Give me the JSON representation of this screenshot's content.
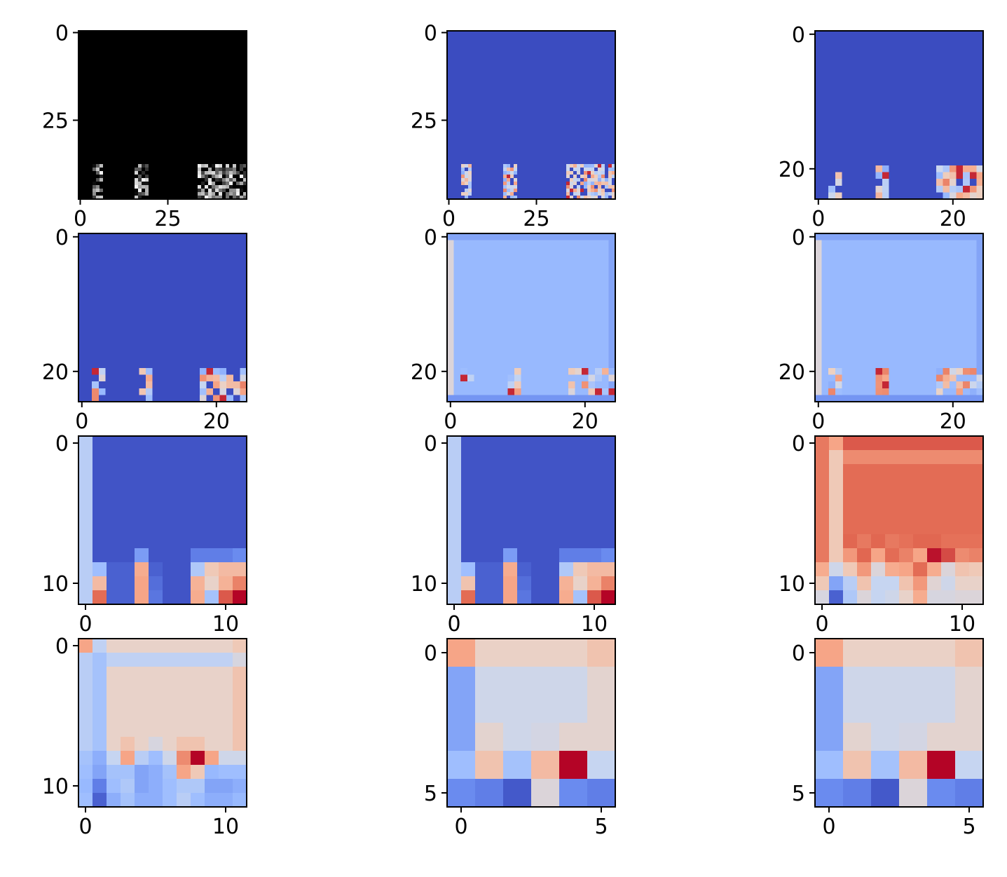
{
  "figure": {
    "description": "Grid of 12 heatmap panels (4 rows x 3 columns), each an imshow-style image with pixel-index axes",
    "colormaps": {
      "gray": [
        "#000000",
        "#ffffff"
      ],
      "coolwarm": [
        "#3b4cc0",
        "#6788ee",
        "#9abbff",
        "#c9d7f0",
        "#edd1c2",
        "#f7a889",
        "#e26952",
        "#b40426"
      ]
    }
  },
  "chart_data": [
    {
      "type": "heatmap",
      "panel": 1,
      "cmap": "gray",
      "matrix_size": [
        48,
        48
      ],
      "extent_x": [
        -0.5,
        47.5
      ],
      "extent_y": [
        -0.5,
        47.5
      ],
      "xticks": [
        0,
        25
      ],
      "xtick_labels": [
        "0",
        "25"
      ],
      "yticks": [
        0,
        25
      ],
      "ytick_labels": [
        "0",
        "25"
      ],
      "base_level": 0.0,
      "base_rows": 40,
      "pattern": "top 40 rows uniform black (zero); bottom rows show sparse bright column strokes (glyph-like)"
    },
    {
      "type": "heatmap",
      "panel": 2,
      "cmap": "coolwarm",
      "matrix_size": [
        48,
        48
      ],
      "extent_x": [
        -0.5,
        47.5
      ],
      "extent_y": [
        -0.5,
        47.5
      ],
      "xticks": [
        0,
        25
      ],
      "xtick_labels": [
        "0",
        "25"
      ],
      "yticks": [
        0,
        25
      ],
      "ytick_labels": [
        "0",
        "25"
      ],
      "base_level": 0.0,
      "base_rows": 35,
      "pattern": "uniform low (blue) background; glyph-like features in bottom rows with light blue / red pixels"
    },
    {
      "type": "heatmap",
      "panel": 3,
      "cmap": "coolwarm",
      "matrix_size": [
        25,
        25
      ],
      "extent_x": [
        -0.5,
        24.5
      ],
      "extent_y": [
        -0.5,
        24.5
      ],
      "xticks": [
        0,
        20
      ],
      "xtick_labels": [
        "0",
        "20"
      ],
      "yticks": [
        0,
        20
      ],
      "ytick_labels": [
        "0",
        "20"
      ],
      "base_level": 0.0,
      "base_rows": 18,
      "pattern": "uniform blue background; features in bottom rows"
    },
    {
      "type": "heatmap",
      "panel": 4,
      "cmap": "coolwarm",
      "matrix_size": [
        25,
        25
      ],
      "extent_x": [
        -0.5,
        24.5
      ],
      "extent_y": [
        -0.5,
        24.5
      ],
      "xticks": [
        0,
        20
      ],
      "xtick_labels": [
        "0",
        "20"
      ],
      "yticks": [
        0,
        20
      ],
      "ytick_labels": [
        "0",
        "20"
      ],
      "base_level": 0.0,
      "base_rows": 18,
      "pattern": "uniform blue background; features in bottom rows"
    },
    {
      "type": "heatmap",
      "panel": 5,
      "cmap": "coolwarm",
      "matrix_size": [
        25,
        25
      ],
      "extent_x": [
        -0.5,
        24.5
      ],
      "extent_y": [
        -0.5,
        24.5
      ],
      "xticks": [
        0,
        20
      ],
      "xtick_labels": [
        "0",
        "20"
      ],
      "yticks": [
        0,
        20
      ],
      "ytick_labels": [
        "0",
        "20"
      ],
      "base_level": 0.28,
      "base_rows": 18,
      "pattern": "uniform light-blue background with brighter left column; features in bottom rows"
    },
    {
      "type": "heatmap",
      "panel": 6,
      "cmap": "coolwarm",
      "matrix_size": [
        25,
        25
      ],
      "extent_x": [
        -0.5,
        24.5
      ],
      "extent_y": [
        -0.5,
        24.5
      ],
      "xticks": [
        0,
        20
      ],
      "xtick_labels": [
        "0",
        "20"
      ],
      "yticks": [
        0,
        20
      ],
      "ytick_labels": [
        "0",
        "20"
      ],
      "base_level": 0.28,
      "base_rows": 18,
      "pattern": "uniform light-blue background with brighter left column; features in bottom rows"
    },
    {
      "type": "heatmap",
      "panel": 7,
      "cmap": "coolwarm",
      "matrix_size": [
        12,
        12
      ],
      "extent_x": [
        -0.5,
        11.5
      ],
      "extent_y": [
        -0.5,
        11.5
      ],
      "xticks": [
        0,
        10
      ],
      "xtick_labels": [
        "0",
        "10"
      ],
      "yticks": [
        0,
        10
      ],
      "ytick_labels": [
        "0",
        "10"
      ],
      "matrix": [
        [
          0.38,
          0.02,
          0.02,
          0.02,
          0.02,
          0.02,
          0.02,
          0.02,
          0.02,
          0.02,
          0.02,
          0.02
        ],
        [
          0.38,
          0.02,
          0.02,
          0.02,
          0.02,
          0.02,
          0.02,
          0.02,
          0.02,
          0.02,
          0.02,
          0.02
        ],
        [
          0.38,
          0.02,
          0.02,
          0.02,
          0.02,
          0.02,
          0.02,
          0.02,
          0.02,
          0.02,
          0.02,
          0.02
        ],
        [
          0.38,
          0.02,
          0.02,
          0.02,
          0.02,
          0.02,
          0.02,
          0.02,
          0.02,
          0.02,
          0.02,
          0.02
        ],
        [
          0.38,
          0.02,
          0.02,
          0.02,
          0.02,
          0.02,
          0.02,
          0.02,
          0.02,
          0.02,
          0.02,
          0.02
        ],
        [
          0.38,
          0.02,
          0.02,
          0.02,
          0.02,
          0.02,
          0.02,
          0.02,
          0.02,
          0.02,
          0.02,
          0.02
        ],
        [
          0.38,
          0.02,
          0.02,
          0.02,
          0.02,
          0.02,
          0.02,
          0.02,
          0.02,
          0.02,
          0.02,
          0.02
        ],
        [
          0.38,
          0.02,
          0.02,
          0.02,
          0.02,
          0.02,
          0.02,
          0.02,
          0.02,
          0.02,
          0.02,
          0.02
        ],
        [
          0.38,
          0.02,
          0.02,
          0.02,
          0.2,
          0.02,
          0.02,
          0.02,
          0.12,
          0.12,
          0.12,
          0.15
        ],
        [
          0.38,
          0.3,
          0.05,
          0.05,
          0.7,
          0.05,
          0.02,
          0.02,
          0.35,
          0.6,
          0.65,
          0.65
        ],
        [
          0.38,
          0.65,
          0.05,
          0.05,
          0.72,
          0.08,
          0.02,
          0.02,
          0.68,
          0.55,
          0.68,
          0.8
        ],
        [
          0.38,
          0.85,
          0.05,
          0.05,
          0.72,
          0.1,
          0.02,
          0.02,
          0.7,
          0.32,
          0.88,
          1.0
        ]
      ]
    },
    {
      "type": "heatmap",
      "panel": 8,
      "cmap": "coolwarm",
      "matrix_size": [
        12,
        12
      ],
      "extent_x": [
        -0.5,
        11.5
      ],
      "extent_y": [
        -0.5,
        11.5
      ],
      "xticks": [
        0,
        10
      ],
      "xtick_labels": [
        "0",
        "10"
      ],
      "yticks": [
        0,
        10
      ],
      "ytick_labels": [
        "0",
        "10"
      ],
      "matrix": [
        [
          0.38,
          0.02,
          0.02,
          0.02,
          0.02,
          0.02,
          0.02,
          0.02,
          0.02,
          0.02,
          0.02,
          0.02
        ],
        [
          0.38,
          0.02,
          0.02,
          0.02,
          0.02,
          0.02,
          0.02,
          0.02,
          0.02,
          0.02,
          0.02,
          0.02
        ],
        [
          0.38,
          0.02,
          0.02,
          0.02,
          0.02,
          0.02,
          0.02,
          0.02,
          0.02,
          0.02,
          0.02,
          0.02
        ],
        [
          0.38,
          0.02,
          0.02,
          0.02,
          0.02,
          0.02,
          0.02,
          0.02,
          0.02,
          0.02,
          0.02,
          0.02
        ],
        [
          0.38,
          0.02,
          0.02,
          0.02,
          0.02,
          0.02,
          0.02,
          0.02,
          0.02,
          0.02,
          0.02,
          0.02
        ],
        [
          0.38,
          0.02,
          0.02,
          0.02,
          0.02,
          0.02,
          0.02,
          0.02,
          0.02,
          0.02,
          0.02,
          0.02
        ],
        [
          0.38,
          0.02,
          0.02,
          0.02,
          0.02,
          0.02,
          0.02,
          0.02,
          0.02,
          0.02,
          0.02,
          0.02
        ],
        [
          0.38,
          0.02,
          0.02,
          0.02,
          0.02,
          0.02,
          0.02,
          0.02,
          0.02,
          0.02,
          0.02,
          0.02
        ],
        [
          0.38,
          0.02,
          0.02,
          0.02,
          0.2,
          0.02,
          0.02,
          0.02,
          0.12,
          0.12,
          0.12,
          0.15
        ],
        [
          0.38,
          0.3,
          0.05,
          0.05,
          0.7,
          0.05,
          0.02,
          0.02,
          0.35,
          0.6,
          0.65,
          0.65
        ],
        [
          0.38,
          0.62,
          0.05,
          0.05,
          0.72,
          0.08,
          0.02,
          0.02,
          0.68,
          0.55,
          0.68,
          0.8
        ],
        [
          0.38,
          0.85,
          0.05,
          0.05,
          0.72,
          0.1,
          0.02,
          0.02,
          0.7,
          0.32,
          0.88,
          1.0
        ]
      ]
    },
    {
      "type": "heatmap",
      "panel": 9,
      "cmap": "coolwarm",
      "matrix_size": [
        12,
        12
      ],
      "extent_x": [
        -0.5,
        11.5
      ],
      "extent_y": [
        -0.5,
        11.5
      ],
      "xticks": [
        0,
        10
      ],
      "xtick_labels": [
        "0",
        "10"
      ],
      "yticks": [
        0,
        10
      ],
      "ytick_labels": [
        "0",
        "10"
      ],
      "matrix": [
        [
          0.82,
          0.72,
          0.88,
          0.88,
          0.88,
          0.88,
          0.88,
          0.88,
          0.88,
          0.88,
          0.88,
          0.88
        ],
        [
          0.82,
          0.6,
          0.78,
          0.78,
          0.78,
          0.78,
          0.78,
          0.78,
          0.78,
          0.78,
          0.78,
          0.78
        ],
        [
          0.82,
          0.6,
          0.85,
          0.85,
          0.85,
          0.85,
          0.85,
          0.85,
          0.85,
          0.85,
          0.85,
          0.85
        ],
        [
          0.82,
          0.6,
          0.85,
          0.85,
          0.85,
          0.85,
          0.85,
          0.85,
          0.85,
          0.85,
          0.85,
          0.85
        ],
        [
          0.82,
          0.6,
          0.85,
          0.85,
          0.85,
          0.85,
          0.85,
          0.85,
          0.85,
          0.85,
          0.85,
          0.85
        ],
        [
          0.82,
          0.6,
          0.85,
          0.85,
          0.85,
          0.85,
          0.85,
          0.85,
          0.85,
          0.85,
          0.85,
          0.85
        ],
        [
          0.82,
          0.6,
          0.85,
          0.85,
          0.85,
          0.85,
          0.85,
          0.85,
          0.85,
          0.85,
          0.85,
          0.85
        ],
        [
          0.82,
          0.6,
          0.86,
          0.82,
          0.86,
          0.82,
          0.84,
          0.86,
          0.86,
          0.84,
          0.84,
          0.84
        ],
        [
          0.82,
          0.6,
          0.75,
          0.86,
          0.72,
          0.85,
          0.8,
          0.72,
          0.98,
          0.9,
          0.78,
          0.8
        ],
        [
          0.7,
          0.45,
          0.6,
          0.75,
          0.5,
          0.7,
          0.72,
          0.85,
          0.7,
          0.5,
          0.62,
          0.6
        ],
        [
          0.6,
          0.22,
          0.38,
          0.62,
          0.42,
          0.42,
          0.62,
          0.75,
          0.52,
          0.45,
          0.55,
          0.55
        ],
        [
          0.48,
          0.05,
          0.35,
          0.5,
          0.42,
          0.45,
          0.55,
          0.7,
          0.48,
          0.48,
          0.5,
          0.5
        ]
      ]
    },
    {
      "type": "heatmap",
      "panel": 10,
      "cmap": "coolwarm",
      "matrix_size": [
        12,
        12
      ],
      "extent_x": [
        -0.5,
        11.5
      ],
      "extent_y": [
        -0.5,
        11.5
      ],
      "xticks": [
        0,
        10
      ],
      "xtick_labels": [
        "0",
        "10"
      ],
      "yticks": [
        0,
        10
      ],
      "ytick_labels": [
        "0",
        "10"
      ],
      "matrix": [
        [
          0.72,
          0.4,
          0.55,
          0.55,
          0.55,
          0.55,
          0.55,
          0.55,
          0.55,
          0.55,
          0.55,
          0.6
        ],
        [
          0.38,
          0.32,
          0.4,
          0.4,
          0.4,
          0.4,
          0.4,
          0.4,
          0.4,
          0.4,
          0.4,
          0.48
        ],
        [
          0.38,
          0.32,
          0.55,
          0.55,
          0.55,
          0.55,
          0.55,
          0.55,
          0.55,
          0.55,
          0.55,
          0.62
        ],
        [
          0.38,
          0.32,
          0.55,
          0.55,
          0.55,
          0.55,
          0.55,
          0.55,
          0.55,
          0.55,
          0.55,
          0.62
        ],
        [
          0.38,
          0.32,
          0.55,
          0.55,
          0.55,
          0.55,
          0.55,
          0.55,
          0.55,
          0.55,
          0.55,
          0.62
        ],
        [
          0.38,
          0.32,
          0.55,
          0.55,
          0.55,
          0.55,
          0.55,
          0.55,
          0.55,
          0.55,
          0.55,
          0.62
        ],
        [
          0.38,
          0.32,
          0.55,
          0.55,
          0.55,
          0.55,
          0.55,
          0.55,
          0.55,
          0.55,
          0.55,
          0.62
        ],
        [
          0.38,
          0.32,
          0.55,
          0.62,
          0.55,
          0.48,
          0.55,
          0.62,
          0.62,
          0.55,
          0.55,
          0.62
        ],
        [
          0.32,
          0.25,
          0.42,
          0.72,
          0.38,
          0.3,
          0.45,
          0.78,
          1.0,
          0.72,
          0.45,
          0.45
        ],
        [
          0.3,
          0.22,
          0.32,
          0.32,
          0.22,
          0.25,
          0.32,
          0.72,
          0.6,
          0.28,
          0.3,
          0.3
        ],
        [
          0.28,
          0.12,
          0.3,
          0.35,
          0.22,
          0.25,
          0.3,
          0.35,
          0.35,
          0.22,
          0.22,
          0.25
        ],
        [
          0.3,
          0.05,
          0.25,
          0.32,
          0.25,
          0.25,
          0.3,
          0.38,
          0.3,
          0.25,
          0.25,
          0.28
        ]
      ]
    },
    {
      "type": "heatmap",
      "panel": 11,
      "cmap": "coolwarm",
      "matrix_size": [
        6,
        6
      ],
      "extent_x": [
        -0.5,
        5.5
      ],
      "extent_y": [
        -0.5,
        5.5
      ],
      "xticks": [
        0,
        5
      ],
      "xtick_labels": [
        "0",
        "5"
      ],
      "yticks": [
        0,
        5
      ],
      "ytick_labels": [
        "0",
        "5"
      ],
      "matrix": [
        [
          0.72,
          0.56,
          0.56,
          0.56,
          0.56,
          0.62
        ],
        [
          0.22,
          0.45,
          0.45,
          0.45,
          0.45,
          0.53
        ],
        [
          0.22,
          0.45,
          0.45,
          0.45,
          0.45,
          0.53
        ],
        [
          0.22,
          0.53,
          0.45,
          0.47,
          0.53,
          0.53
        ],
        [
          0.3,
          0.62,
          0.32,
          0.65,
          1.0,
          0.42
        ],
        [
          0.15,
          0.12,
          0.03,
          0.5,
          0.15,
          0.12
        ]
      ]
    },
    {
      "type": "heatmap",
      "panel": 12,
      "cmap": "coolwarm",
      "matrix_size": [
        6,
        6
      ],
      "extent_x": [
        -0.5,
        5.5
      ],
      "extent_y": [
        -0.5,
        5.5
      ],
      "xticks": [
        0,
        5
      ],
      "xtick_labels": [
        "0",
        "5"
      ],
      "yticks": [
        0,
        5
      ],
      "ytick_labels": [
        "0",
        "5"
      ],
      "matrix": [
        [
          0.72,
          0.56,
          0.56,
          0.56,
          0.56,
          0.62
        ],
        [
          0.22,
          0.45,
          0.45,
          0.45,
          0.45,
          0.53
        ],
        [
          0.22,
          0.45,
          0.45,
          0.45,
          0.45,
          0.53
        ],
        [
          0.22,
          0.53,
          0.45,
          0.47,
          0.53,
          0.53
        ],
        [
          0.3,
          0.62,
          0.32,
          0.65,
          1.0,
          0.42
        ],
        [
          0.15,
          0.12,
          0.03,
          0.5,
          0.15,
          0.12
        ]
      ]
    }
  ]
}
